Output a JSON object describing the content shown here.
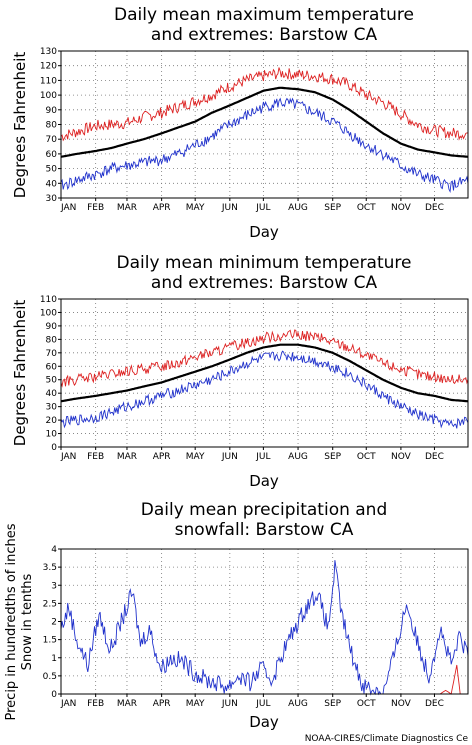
{
  "charts": [
    {
      "title_line1": "Daily mean maximum temperature",
      "title_line2": "and extremes: Barstow CA",
      "ylabel": "Degrees Fahrenheit",
      "xlabel": "Day"
    },
    {
      "title_line1": "Daily mean minimum temperature",
      "title_line2": "and extremes: Barstow CA",
      "ylabel": "Degrees Fahrenheit",
      "xlabel": "Day"
    },
    {
      "title_line1": "Daily mean precipitation and",
      "title_line2": "snowfall: Barstow CA",
      "ylabel_line1": "Precip in hundredths of inches",
      "ylabel_line2": "Snow in tenths",
      "xlabel": "Day"
    }
  ],
  "credit": "NOAA-CIRES/Climate Diagnostics Ce",
  "chart_data": [
    {
      "type": "line",
      "title": "Daily mean maximum temperature and extremes: Barstow CA",
      "xlabel": "Day",
      "ylabel": "Degrees Fahrenheit",
      "x_ticks": [
        "JAN",
        "FEB",
        "MAR",
        "APR",
        "MAY",
        "JUN",
        "JUL",
        "AUG",
        "SEP",
        "OCT",
        "NOV",
        "DEC"
      ],
      "ylim": [
        30,
        130
      ],
      "y_ticks": [
        30,
        40,
        50,
        60,
        70,
        80,
        90,
        100,
        110,
        120,
        130
      ],
      "grid": true,
      "series": [
        {
          "color": "#dd2222",
          "x": [
            1,
            15,
            32,
            46,
            60,
            75,
            91,
            106,
            121,
            136,
            152,
            167,
            182,
            197,
            213,
            228,
            244,
            259,
            274,
            289,
            305,
            320,
            335,
            350,
            365
          ],
          "values": [
            72,
            75,
            79,
            80,
            81,
            85,
            88,
            92,
            96,
            100,
            106,
            110,
            113,
            115,
            114,
            113,
            111,
            107,
            100,
            95,
            87,
            80,
            76,
            74,
            74
          ]
        },
        {
          "color": "#000000",
          "x": [
            1,
            15,
            32,
            46,
            60,
            75,
            91,
            106,
            121,
            136,
            152,
            167,
            182,
            197,
            213,
            228,
            244,
            259,
            274,
            289,
            305,
            320,
            335,
            350,
            365
          ],
          "values": [
            58,
            60,
            62,
            64,
            67,
            70,
            74,
            78,
            82,
            88,
            93,
            98,
            103,
            105,
            104,
            102,
            97,
            90,
            82,
            74,
            67,
            63,
            61,
            59,
            58
          ]
        },
        {
          "color": "#2233cc",
          "x": [
            1,
            15,
            32,
            46,
            60,
            75,
            91,
            106,
            121,
            136,
            152,
            167,
            182,
            197,
            213,
            228,
            244,
            259,
            274,
            289,
            305,
            320,
            335,
            350,
            365
          ],
          "values": [
            38,
            42,
            46,
            50,
            52,
            54,
            56,
            60,
            66,
            72,
            80,
            86,
            92,
            95,
            93,
            88,
            82,
            74,
            66,
            60,
            52,
            46,
            42,
            38,
            42
          ]
        }
      ]
    },
    {
      "type": "line",
      "title": "Daily mean minimum temperature and extremes: Barstow CA",
      "xlabel": "Day",
      "ylabel": "Degrees Fahrenheit",
      "x_ticks": [
        "JAN",
        "FEB",
        "MAR",
        "APR",
        "MAY",
        "JUN",
        "JUL",
        "AUG",
        "SEP",
        "OCT",
        "NOV",
        "DEC"
      ],
      "ylim": [
        0,
        110
      ],
      "y_ticks": [
        0,
        10,
        20,
        30,
        40,
        50,
        60,
        70,
        80,
        90,
        100,
        110
      ],
      "grid": true,
      "series": [
        {
          "color": "#dd2222",
          "x": [
            1,
            15,
            32,
            46,
            60,
            75,
            91,
            106,
            121,
            136,
            152,
            167,
            182,
            197,
            213,
            228,
            244,
            259,
            274,
            289,
            305,
            320,
            335,
            350,
            365
          ],
          "values": [
            48,
            50,
            52,
            54,
            56,
            58,
            60,
            63,
            67,
            70,
            74,
            78,
            81,
            83,
            83,
            82,
            78,
            74,
            68,
            62,
            58,
            54,
            52,
            50,
            50
          ]
        },
        {
          "color": "#000000",
          "x": [
            1,
            15,
            32,
            46,
            60,
            75,
            91,
            106,
            121,
            136,
            152,
            167,
            182,
            197,
            213,
            228,
            244,
            259,
            274,
            289,
            305,
            320,
            335,
            350,
            365
          ],
          "values": [
            34,
            36,
            38,
            40,
            42,
            45,
            48,
            52,
            56,
            60,
            65,
            70,
            74,
            76,
            76,
            74,
            70,
            64,
            57,
            50,
            44,
            40,
            38,
            35,
            34
          ]
        },
        {
          "color": "#2233cc",
          "x": [
            1,
            15,
            32,
            46,
            60,
            75,
            91,
            106,
            121,
            136,
            152,
            167,
            182,
            197,
            213,
            228,
            244,
            259,
            274,
            289,
            305,
            320,
            335,
            350,
            365
          ],
          "values": [
            18,
            20,
            22,
            26,
            30,
            34,
            38,
            42,
            46,
            50,
            56,
            62,
            66,
            68,
            67,
            64,
            60,
            54,
            46,
            38,
            30,
            24,
            20,
            16,
            20
          ]
        }
      ]
    },
    {
      "type": "line",
      "title": "Daily mean precipitation and snowfall: Barstow CA",
      "xlabel": "Day",
      "ylabel": "Precip in hundredths of inches / Snow in tenths",
      "x_ticks": [
        "JAN",
        "FEB",
        "MAR",
        "APR",
        "MAY",
        "JUN",
        "JUL",
        "AUG",
        "SEP",
        "OCT",
        "NOV",
        "DEC"
      ],
      "ylim": [
        0,
        4
      ],
      "y_ticks": [
        0,
        0.5,
        1,
        1.5,
        2,
        2.5,
        3,
        3.5,
        4
      ],
      "grid": true,
      "series": [
        {
          "color": "#2233cc",
          "x": [
            1,
            8,
            15,
            25,
            35,
            45,
            55,
            65,
            72,
            80,
            90,
            100,
            110,
            120,
            130,
            140,
            150,
            160,
            170,
            180,
            190,
            200,
            210,
            220,
            230,
            240,
            246,
            252,
            260,
            270,
            280,
            290,
            300,
            310,
            320,
            330,
            340,
            350,
            358,
            365
          ],
          "values": [
            1.8,
            2.4,
            1.5,
            0.8,
            2.2,
            1.2,
            2.0,
            2.8,
            1.4,
            1.8,
            0.7,
            1.0,
            0.9,
            0.6,
            0.4,
            0.3,
            0.2,
            0.5,
            0.3,
            0.7,
            0.4,
            1.2,
            1.8,
            2.4,
            2.8,
            1.8,
            3.5,
            2.2,
            1.2,
            0.3,
            0.1,
            0.1,
            1.2,
            2.5,
            1.4,
            0.5,
            1.8,
            0.8,
            1.6,
            1.0
          ]
        },
        {
          "color": "#dd2222",
          "x": [
            1,
            300,
            340,
            345,
            350,
            355,
            358,
            365
          ],
          "values": [
            0,
            0,
            0,
            0.1,
            0,
            0.8,
            0,
            0
          ]
        }
      ]
    }
  ]
}
